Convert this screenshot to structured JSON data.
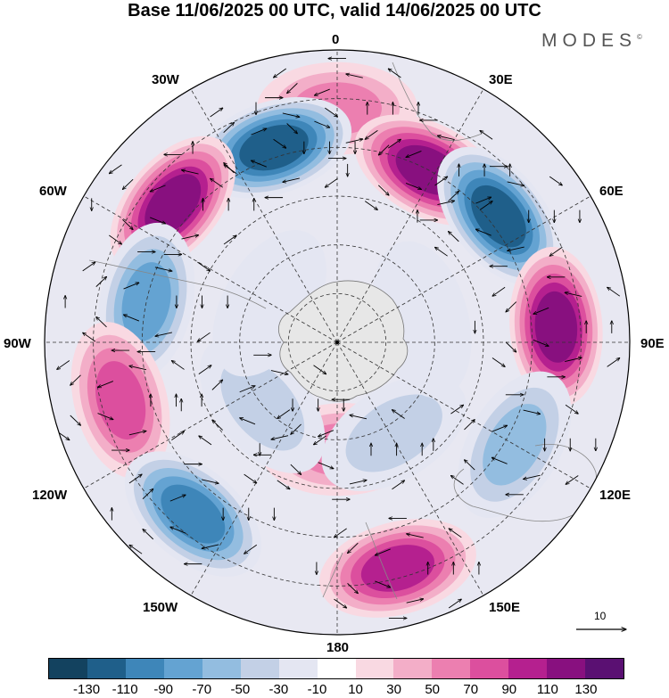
{
  "title": "Base 11/06/2025 00 UTC, valid 14/06/2025 00 UTC",
  "brand": "MODES",
  "brand_mark": "©",
  "longitude_labels": {
    "deg0": "0",
    "e30": "30E",
    "e60": "60E",
    "e90": "90E",
    "e120": "120E",
    "e150": "150E",
    "deg180": "180",
    "w150": "150W",
    "w120": "120W",
    "w90": "90W",
    "w60": "60W",
    "w30": "30W"
  },
  "reference_vector": "10",
  "colorbar": {
    "colors": [
      "#13425f",
      "#1f5f8a",
      "#3e86b9",
      "#64a3d2",
      "#93bde0",
      "#c3d0e6",
      "#e4e6f2",
      "#ffffff",
      "#f9d9e2",
      "#f3aec8",
      "#ec7fb0",
      "#dc4f9e",
      "#b5208f",
      "#88107f",
      "#5a1072"
    ],
    "ticks": [
      "-130",
      "-110",
      "-90",
      "-70",
      "-50",
      "-30",
      "-10",
      "10",
      "30",
      "50",
      "70",
      "90",
      "110",
      "130"
    ]
  },
  "anomalies": [
    {
      "lon": 0,
      "lat": -42,
      "value": 60
    },
    {
      "lon": 28,
      "lat": -50,
      "value": 125
    },
    {
      "lon": -18,
      "lat": -48,
      "value": -125
    },
    {
      "lon": -50,
      "lat": -46,
      "value": 120
    },
    {
      "lon": 52,
      "lat": -48,
      "value": -125
    },
    {
      "lon": -78,
      "lat": -50,
      "value": -70
    },
    {
      "lon": 86,
      "lat": -45,
      "value": 120
    },
    {
      "lon": -105,
      "lat": -44,
      "value": 80
    },
    {
      "lon": 120,
      "lat": -48,
      "value": -55
    },
    {
      "lon": -140,
      "lat": -44,
      "value": -90
    },
    {
      "lon": 165,
      "lat": -42,
      "value": 90
    },
    {
      "lon": 178,
      "lat": -68,
      "value": 50
    },
    {
      "lon": -130,
      "lat": -70,
      "value": -40
    },
    {
      "lon": 148,
      "lat": -68,
      "value": -30
    },
    {
      "lon": 75,
      "lat": -72,
      "value": -10
    },
    {
      "lon": -60,
      "lat": -74,
      "value": -20
    }
  ]
}
